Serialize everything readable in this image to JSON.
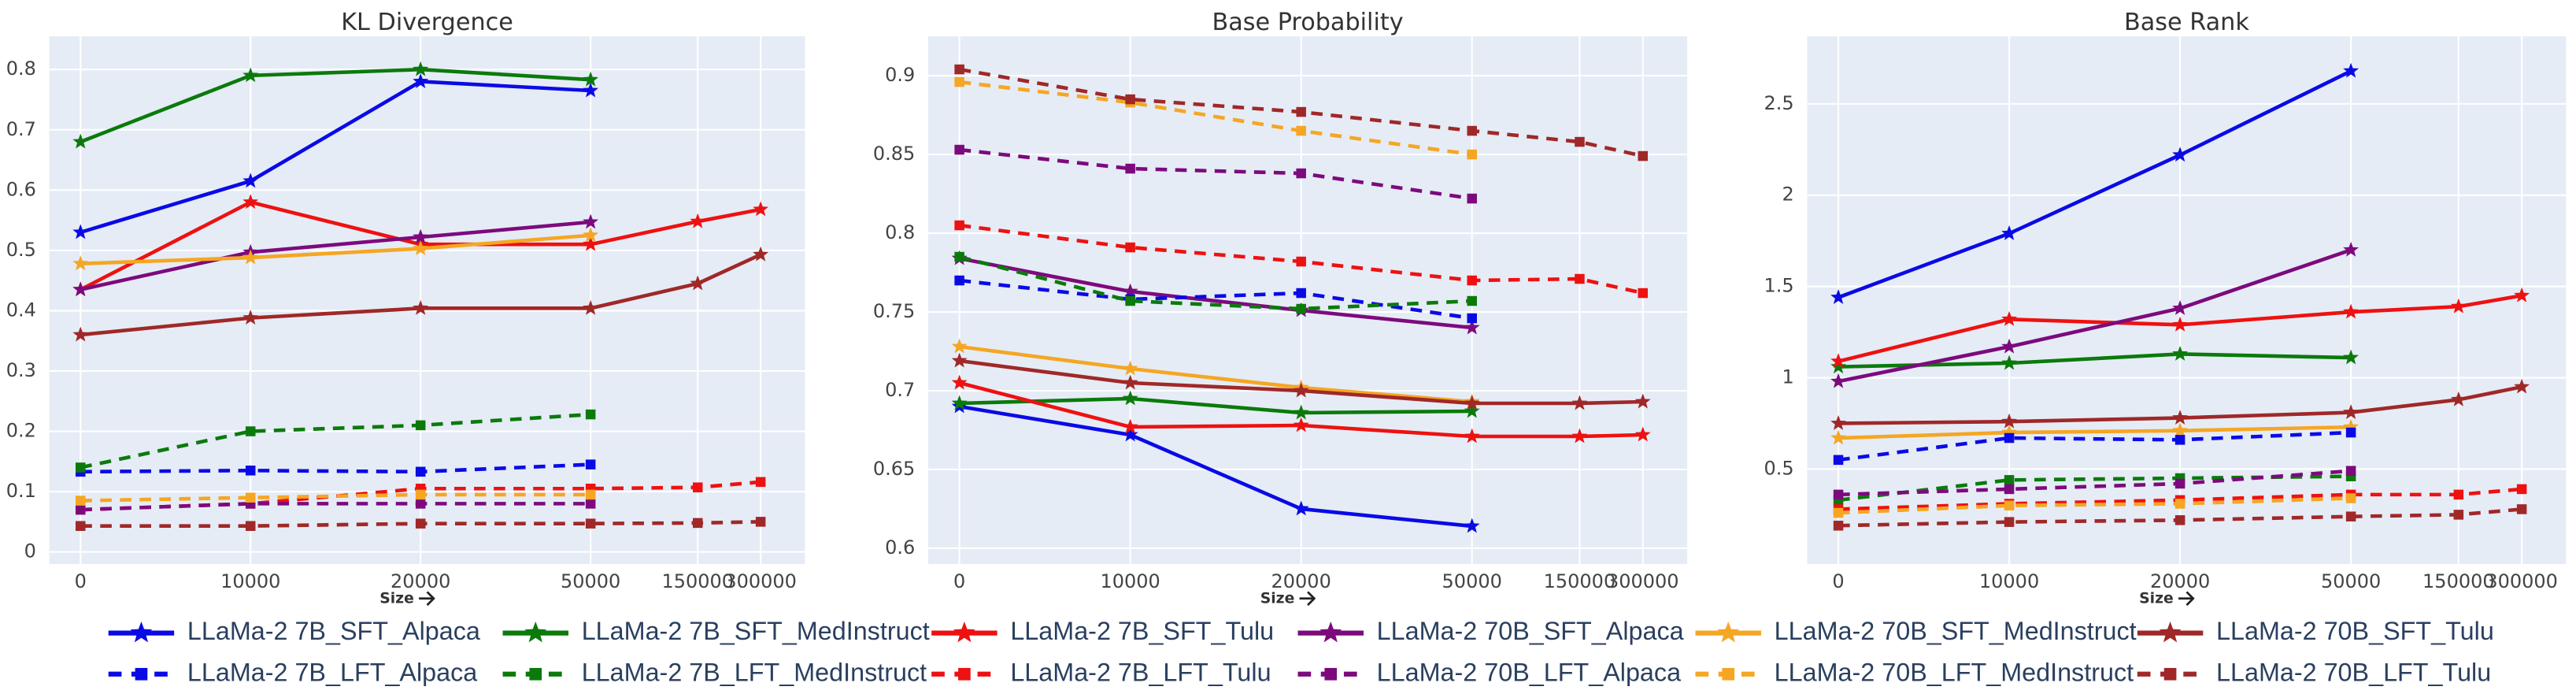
{
  "chart_data": [
    {
      "type": "line",
      "title": "KL Divergence",
      "xlabel": "Size",
      "categories": [
        "0",
        "10000",
        "20000",
        "50000",
        "150000",
        "300000"
      ],
      "ylim": [
        -0.02,
        0.855
      ],
      "yticks": [
        0,
        0.1,
        0.2,
        0.3,
        0.4,
        0.5,
        0.6,
        0.7,
        0.8
      ],
      "grid": true,
      "series": [
        {
          "name": "LLaMa-2 7B_SFT_Alpaca",
          "color": "#0a0ae6",
          "linestyle": "solid",
          "marker": "star",
          "values": [
            0.53,
            0.615,
            0.78,
            0.765,
            null,
            null
          ]
        },
        {
          "name": "LLaMa-2 7B_SFT_MedInstruct",
          "color": "#0b7a0b",
          "linestyle": "solid",
          "marker": "star",
          "values": [
            0.68,
            0.79,
            0.8,
            0.783,
            null,
            null
          ]
        },
        {
          "name": "LLaMa-2  7B_SFT_Tulu",
          "color": "#ee1111",
          "linestyle": "solid",
          "marker": "star",
          "values": [
            0.435,
            0.58,
            0.51,
            0.51,
            0.548,
            0.568
          ]
        },
        {
          "name": "LLaMa-2 70B_SFT_Alpaca",
          "color": "#7d0a7d",
          "linestyle": "solid",
          "marker": "star",
          "values": [
            0.435,
            0.497,
            0.522,
            0.547,
            null,
            null
          ]
        },
        {
          "name": "LLaMa-2 70B_SFT_MedInstruct",
          "color": "#f5a623",
          "linestyle": "solid",
          "marker": "star",
          "values": [
            0.478,
            0.488,
            0.503,
            0.525,
            null,
            null
          ]
        },
        {
          "name": "LLaMa-2 70B_SFT_Tulu",
          "color": "#a02828",
          "linestyle": "solid",
          "marker": "star",
          "values": [
            0.36,
            0.388,
            0.404,
            0.404,
            0.445,
            0.493
          ]
        },
        {
          "name": "LLaMa-2 7B_LFT_Alpaca",
          "color": "#0a0ae6",
          "linestyle": "dashed",
          "marker": "square",
          "values": [
            0.133,
            0.135,
            0.133,
            0.145,
            null,
            null
          ]
        },
        {
          "name": "LLaMa-2 7B_LFT_MedInstruct",
          "color": "#0b7a0b",
          "linestyle": "dashed",
          "marker": "square",
          "values": [
            0.14,
            0.2,
            0.21,
            0.228,
            null,
            null
          ]
        },
        {
          "name": "LLaMa-2 7B_LFT_Tulu",
          "color": "#ee1111",
          "linestyle": "dashed",
          "marker": "square",
          "values": [
            0.07,
            0.08,
            0.105,
            0.105,
            0.107,
            0.116
          ]
        },
        {
          "name": "LLaMa-2 70B_LFT_Alpaca",
          "color": "#7d0a7d",
          "linestyle": "dashed",
          "marker": "square",
          "values": [
            0.07,
            0.08,
            0.08,
            0.08,
            null,
            null
          ]
        },
        {
          "name": "LLaMa-2 70B_LFT_MedInstruct",
          "color": "#f5a623",
          "linestyle": "dashed",
          "marker": "square",
          "values": [
            0.085,
            0.09,
            0.095,
            0.095,
            null,
            null
          ]
        },
        {
          "name": "LLaMa-2 70B_LFT_Tulu",
          "color": "#a02828",
          "linestyle": "dashed",
          "marker": "square",
          "values": [
            0.043,
            0.043,
            0.047,
            0.047,
            0.048,
            0.05
          ]
        }
      ]
    },
    {
      "type": "line",
      "title": "Base Probability",
      "xlabel": "Size",
      "categories": [
        "0",
        "10000",
        "20000",
        "50000",
        "150000",
        "300000"
      ],
      "ylim": [
        0.59,
        0.925
      ],
      "yticks": [
        0.6,
        0.65,
        0.7,
        0.75,
        0.8,
        0.85,
        0.9
      ],
      "grid": true,
      "series": [
        {
          "color": "#0a0ae6",
          "linestyle": "solid",
          "marker": "star",
          "values": [
            0.69,
            0.672,
            0.625,
            0.614,
            null,
            null
          ]
        },
        {
          "color": "#0b7a0b",
          "linestyle": "solid",
          "marker": "star",
          "values": [
            0.692,
            0.695,
            0.686,
            0.687,
            null,
            null
          ]
        },
        {
          "color": "#ee1111",
          "linestyle": "solid",
          "marker": "star",
          "values": [
            0.705,
            0.677,
            0.678,
            0.671,
            0.671,
            0.672
          ]
        },
        {
          "color": "#7d0a7d",
          "linestyle": "solid",
          "marker": "star",
          "values": [
            0.784,
            0.763,
            0.751,
            0.74,
            null,
            null
          ]
        },
        {
          "color": "#f5a623",
          "linestyle": "solid",
          "marker": "star",
          "values": [
            0.728,
            0.714,
            0.702,
            0.693,
            null,
            null
          ]
        },
        {
          "color": "#a02828",
          "linestyle": "solid",
          "marker": "star",
          "values": [
            0.719,
            0.705,
            0.7,
            0.692,
            0.692,
            0.693
          ]
        },
        {
          "color": "#0a0ae6",
          "linestyle": "dashed",
          "marker": "square",
          "values": [
            0.77,
            0.758,
            0.762,
            0.746,
            null,
            null
          ]
        },
        {
          "color": "#0b7a0b",
          "linestyle": "dashed",
          "marker": "square",
          "values": [
            0.785,
            0.757,
            0.752,
            0.757,
            null,
            null
          ]
        },
        {
          "color": "#ee1111",
          "linestyle": "dashed",
          "marker": "square",
          "values": [
            0.805,
            0.791,
            0.782,
            0.77,
            0.771,
            0.762
          ]
        },
        {
          "color": "#7d0a7d",
          "linestyle": "dashed",
          "marker": "square",
          "values": [
            0.853,
            0.841,
            0.838,
            0.822,
            null,
            null
          ]
        },
        {
          "color": "#f5a623",
          "linestyle": "dashed",
          "marker": "square",
          "values": [
            0.896,
            0.883,
            0.865,
            0.85,
            null,
            null
          ]
        },
        {
          "color": "#a02828",
          "linestyle": "dashed",
          "marker": "square",
          "values": [
            0.904,
            0.885,
            0.877,
            0.865,
            0.858,
            0.849
          ]
        }
      ]
    },
    {
      "type": "line",
      "title": "Base Rank",
      "xlabel": "Size",
      "categories": [
        "0",
        "10000",
        "20000",
        "50000",
        "150000",
        "300000"
      ],
      "ylim": [
        -0.02,
        2.87
      ],
      "yticks": [
        0.5,
        1,
        1.5,
        2,
        2.5
      ],
      "grid": true,
      "series": [
        {
          "color": "#0a0ae6",
          "linestyle": "solid",
          "marker": "star",
          "values": [
            1.44,
            1.79,
            2.22,
            2.68,
            null,
            null
          ]
        },
        {
          "color": "#0b7a0b",
          "linestyle": "solid",
          "marker": "star",
          "values": [
            1.06,
            1.08,
            1.13,
            1.11,
            null,
            null
          ]
        },
        {
          "color": "#ee1111",
          "linestyle": "solid",
          "marker": "star",
          "values": [
            1.09,
            1.32,
            1.29,
            1.36,
            1.39,
            1.45
          ]
        },
        {
          "color": "#7d0a7d",
          "linestyle": "solid",
          "marker": "star",
          "values": [
            0.98,
            1.17,
            1.38,
            1.7,
            null,
            null
          ]
        },
        {
          "color": "#f5a623",
          "linestyle": "solid",
          "marker": "star",
          "values": [
            0.67,
            0.7,
            0.71,
            0.73,
            null,
            null
          ]
        },
        {
          "color": "#a02828",
          "linestyle": "solid",
          "marker": "star",
          "values": [
            0.75,
            0.76,
            0.78,
            0.81,
            0.88,
            0.95
          ]
        },
        {
          "color": "#0a0ae6",
          "linestyle": "dashed",
          "marker": "square",
          "values": [
            0.55,
            0.67,
            0.66,
            0.7,
            null,
            null
          ]
        },
        {
          "color": "#0b7a0b",
          "linestyle": "dashed",
          "marker": "square",
          "values": [
            0.33,
            0.44,
            0.45,
            0.46,
            null,
            null
          ]
        },
        {
          "color": "#ee1111",
          "linestyle": "dashed",
          "marker": "square",
          "values": [
            0.28,
            0.31,
            0.33,
            0.36,
            0.36,
            0.39
          ]
        },
        {
          "color": "#7d0a7d",
          "linestyle": "dashed",
          "marker": "square",
          "values": [
            0.36,
            0.39,
            0.42,
            0.49,
            null,
            null
          ]
        },
        {
          "color": "#f5a623",
          "linestyle": "dashed",
          "marker": "square",
          "values": [
            0.26,
            0.3,
            0.31,
            0.34,
            null,
            null
          ]
        },
        {
          "color": "#a02828",
          "linestyle": "dashed",
          "marker": "square",
          "values": [
            0.19,
            0.21,
            0.22,
            0.24,
            0.25,
            0.28
          ]
        }
      ]
    }
  ]
}
